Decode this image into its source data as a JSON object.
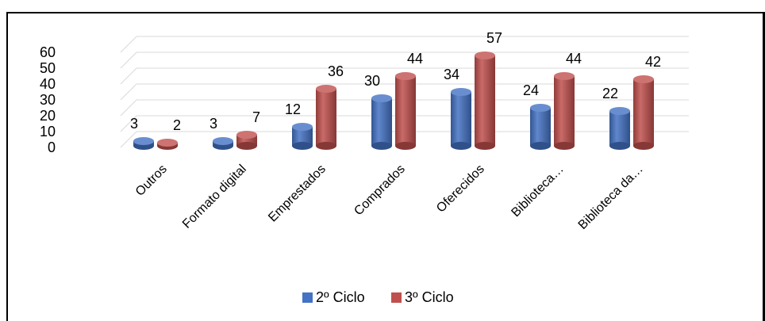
{
  "chart_data": {
    "type": "bar",
    "categories": [
      "Outros",
      "Formato digital",
      "Emprestados",
      "Comprados",
      "Oferecidos",
      "Biblioteca…",
      "Biblioteca da…"
    ],
    "series": [
      {
        "name": "2º Ciclo",
        "color": "#4472c4",
        "values": [
          3,
          3,
          12,
          30,
          34,
          24,
          22
        ]
      },
      {
        "name": "3º Ciclo",
        "color": "#c0504d",
        "values": [
          2,
          7,
          36,
          44,
          57,
          44,
          42
        ]
      }
    ],
    "yticks": [
      0,
      10,
      20,
      30,
      40,
      50,
      60
    ],
    "ylim": [
      0,
      60
    ],
    "grid": true,
    "legend": "bottom",
    "style": "3d-cylinder"
  }
}
